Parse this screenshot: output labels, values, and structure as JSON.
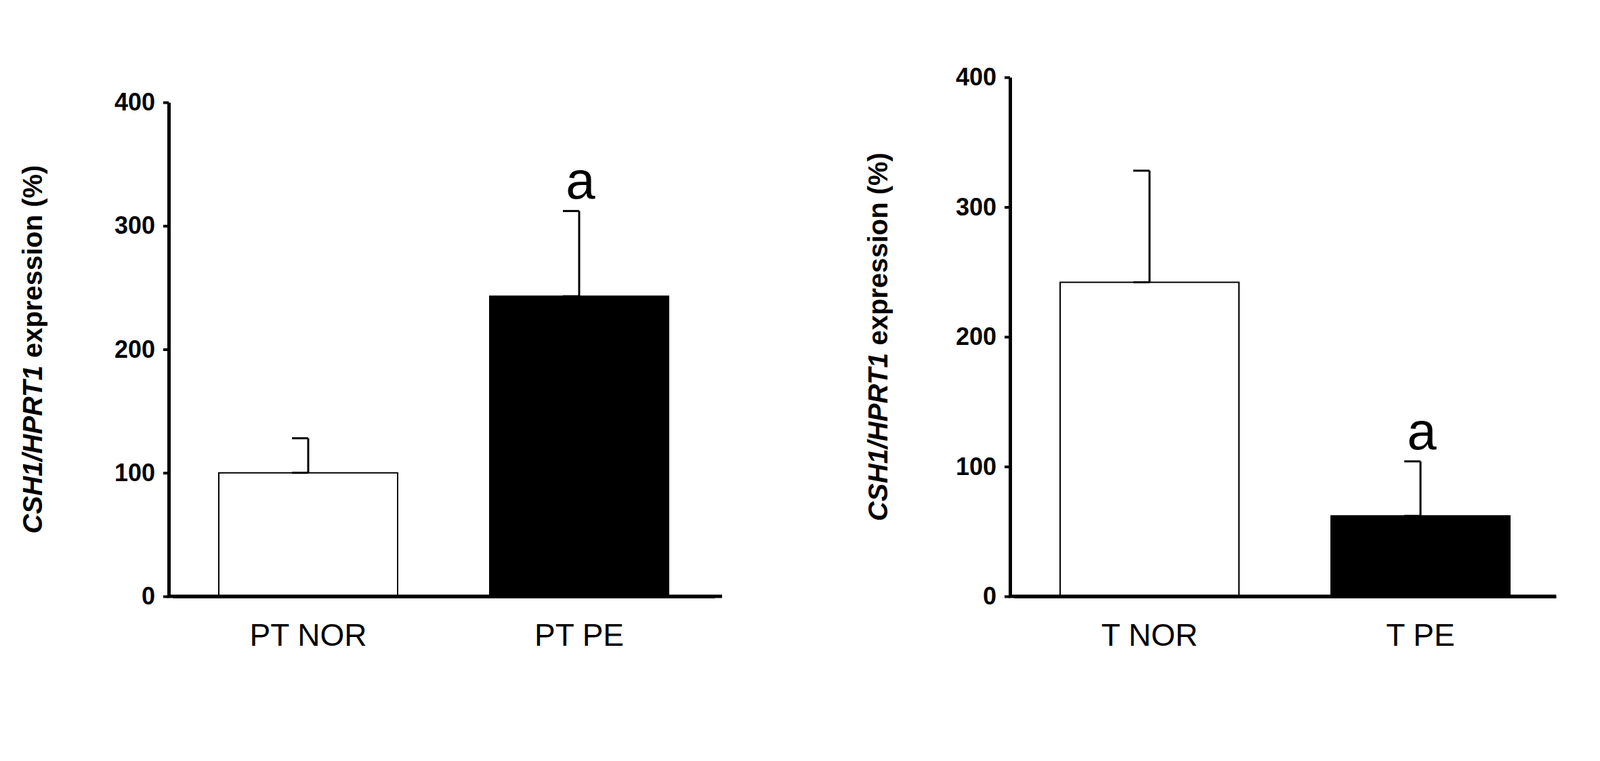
{
  "chart_data": [
    {
      "type": "bar",
      "y_label": "CSH1/HPRT1 expression (%)",
      "categories": [
        "PT NOR",
        "PT PE"
      ],
      "values": [
        100,
        243
      ],
      "errors": [
        28,
        69
      ],
      "colors": [
        "#ffffff",
        "#000000"
      ],
      "ylim": [
        0,
        400
      ],
      "yticks": [
        0,
        100,
        200,
        300,
        400
      ],
      "annotations": [
        {
          "text": "a",
          "x": "PT PE"
        }
      ]
    },
    {
      "type": "bar",
      "y_label": "CSH1/HPRT1 expression (%)",
      "categories": [
        "T NOR",
        "T PE"
      ],
      "values": [
        242,
        62
      ],
      "errors": [
        86,
        42
      ],
      "colors": [
        "#ffffff",
        "#000000"
      ],
      "ylim": [
        0,
        400
      ],
      "yticks": [
        0,
        100,
        200,
        300,
        400
      ],
      "annotations": [
        {
          "text": "a",
          "x": "T PE"
        }
      ]
    }
  ]
}
